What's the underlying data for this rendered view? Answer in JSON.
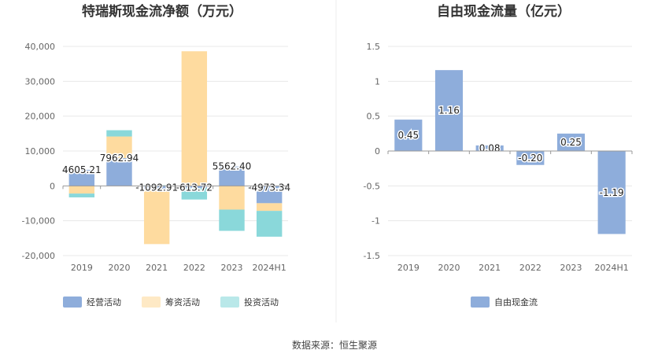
{
  "colors": {
    "operating": "#8eaddb",
    "financing": "#fedb9f",
    "investing": "#8ad8da",
    "free_cash_flow": "#8eaddb",
    "grid": "#e8e8e8",
    "axis": "#999999"
  },
  "source_text": "数据来源：恒生聚源",
  "chart_data": [
    {
      "type": "bar",
      "stacked": true,
      "title": "特瑞斯现金流净额（万元）",
      "categories": [
        "2019",
        "2020",
        "2021",
        "2022",
        "2023",
        "2024H1"
      ],
      "ylim": [
        -20000,
        40000
      ],
      "yticks": [
        -20000,
        -10000,
        0,
        10000,
        20000,
        30000,
        40000
      ],
      "ytick_labels": [
        "-20,000",
        "-10,000",
        "0",
        "10,000",
        "20,000",
        "30,000",
        "40,000"
      ],
      "grid": true,
      "legend_position": "bottom-left",
      "series": [
        {
          "name": "经营活动",
          "color_key": "operating",
          "values": [
            4605.21,
            7962.94,
            -1092.91,
            -613.72,
            5562.4,
            -4973.34
          ]
        },
        {
          "name": "筹资活动",
          "color_key": "financing",
          "values": [
            -2200,
            6200,
            -15600,
            38600,
            -6800,
            -2200
          ]
        },
        {
          "name": "投资活动",
          "color_key": "investing",
          "values": [
            -1100,
            1800,
            200,
            -3300,
            -6100,
            -7400
          ]
        }
      ],
      "data_labels": [
        "4605.21",
        "7962.94",
        "-1092.91",
        "-613.72",
        "5562.40",
        "-4973.34"
      ]
    },
    {
      "type": "bar",
      "title": "自由现金流量（亿元）",
      "categories": [
        "2019",
        "2020",
        "2021",
        "2022",
        "2023",
        "2024H1"
      ],
      "ylim": [
        -1.5,
        1.5
      ],
      "yticks": [
        -1.5,
        -1,
        -0.5,
        0,
        0.5,
        1,
        1.5
      ],
      "ytick_labels": [
        "-1.5",
        "-1",
        "-0.5",
        "0",
        "0.5",
        "1",
        "1.5"
      ],
      "grid": true,
      "legend_position": "bottom-center",
      "series": [
        {
          "name": "自由现金流",
          "color_key": "free_cash_flow",
          "values": [
            0.45,
            1.16,
            0.08,
            -0.2,
            0.25,
            -1.19
          ]
        }
      ],
      "data_labels": [
        "0.45",
        "1.16",
        "0.08",
        "-0.20",
        "0.25",
        "-1.19"
      ]
    }
  ]
}
